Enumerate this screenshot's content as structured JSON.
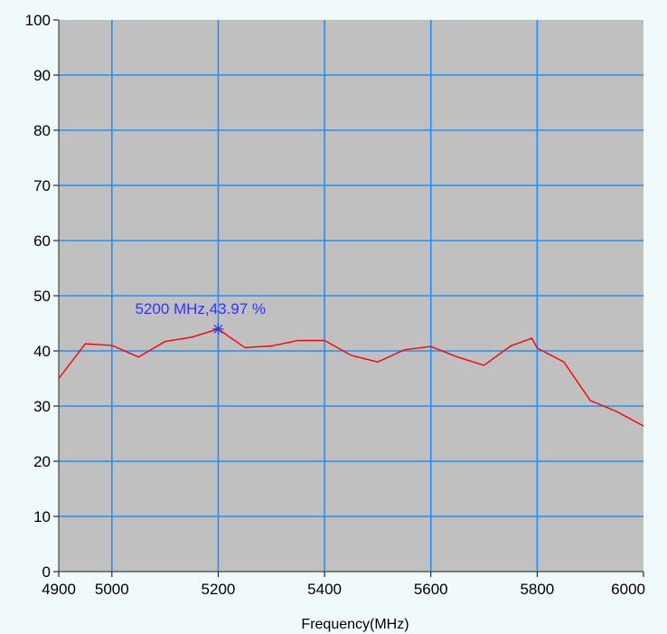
{
  "chart_data": {
    "type": "line",
    "xlabel": "Frequency(MHz)",
    "ylabel": "",
    "xlim": [
      4900,
      6000
    ],
    "ylim": [
      0,
      100
    ],
    "xticks": [
      4900,
      5000,
      5200,
      5400,
      5600,
      5800,
      6000
    ],
    "xgrid": [
      5000,
      5200,
      5400,
      5600,
      5800
    ],
    "yticks": [
      0,
      10,
      20,
      30,
      40,
      50,
      60,
      70,
      80,
      90,
      100
    ],
    "grid": true,
    "series": [
      {
        "name": "",
        "x": [
          4900,
          4950,
          5000,
          5050,
          5100,
          5150,
          5200,
          5250,
          5300,
          5350,
          5400,
          5450,
          5500,
          5550,
          5600,
          5650,
          5700,
          5750,
          5790,
          5800,
          5850,
          5900,
          5950,
          6000
        ],
        "y": [
          35.0,
          41.3,
          41.0,
          38.9,
          41.7,
          42.5,
          43.97,
          40.6,
          40.9,
          41.9,
          41.9,
          39.2,
          38.0,
          40.2,
          40.8,
          38.9,
          37.4,
          40.9,
          42.3,
          40.5,
          38.0,
          31.0,
          29.0,
          26.4
        ]
      }
    ],
    "marker": {
      "x": 5200,
      "y": 43.97,
      "label": "5200 MHz,43.97 %"
    }
  },
  "colors": {
    "page_background": "#f0fafa",
    "plot_background": "#c0c0c0",
    "grid": "#1e90ff",
    "line": "#ff0000",
    "marker": "#3333ff",
    "text": "#000000"
  }
}
